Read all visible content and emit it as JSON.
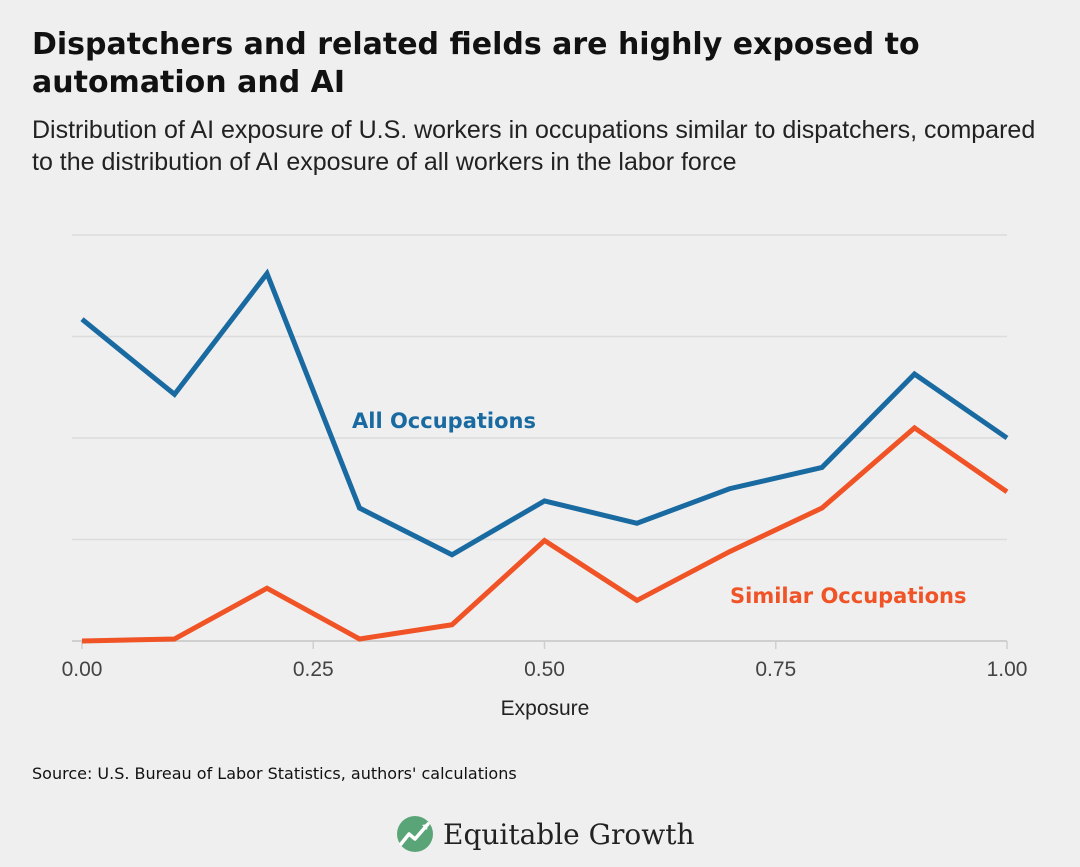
{
  "header": {
    "title": "Dispatchers and related fields are highly exposed to automation and AI",
    "subtitle": "Distribution of AI exposure of U.S. workers in occupations similar to dispatchers, compared to the distribution of AI exposure of all workers in the labor force"
  },
  "chart_data": {
    "type": "line",
    "title": "Dispatchers and related fields are highly exposed to automation and AI",
    "subtitle": "Distribution of AI exposure of U.S. workers in occupations similar to dispatchers, compared to the distribution of AI exposure of all workers in the labor force",
    "xlabel": "Exposure",
    "ylabel": "",
    "x": [
      0.0,
      0.1,
      0.2,
      0.3,
      0.4,
      0.5,
      0.6,
      0.7,
      0.8,
      0.9,
      1.0
    ],
    "xlim": [
      0,
      1
    ],
    "ylim": [
      0,
      4
    ],
    "x_ticks": [
      "0.00",
      "0.25",
      "0.50",
      "0.75",
      "1.00"
    ],
    "y_tick_labels_shown": false,
    "grid": true,
    "series": [
      {
        "name": "All Occupations",
        "color": "#1a6aa2",
        "values": [
          3.17,
          2.43,
          3.62,
          1.31,
          0.85,
          1.38,
          1.16,
          1.5,
          1.71,
          2.63,
          2.0
        ]
      },
      {
        "name": "Similar Occupations",
        "color": "#f05326",
        "values": [
          0.0,
          0.02,
          0.52,
          0.02,
          0.16,
          0.99,
          0.4,
          0.88,
          1.31,
          2.1,
          1.47
        ]
      }
    ]
  },
  "footer": {
    "source": "Source: U.S. Bureau of Labor Statistics, authors' calculations",
    "brand": "Equitable Growth"
  }
}
